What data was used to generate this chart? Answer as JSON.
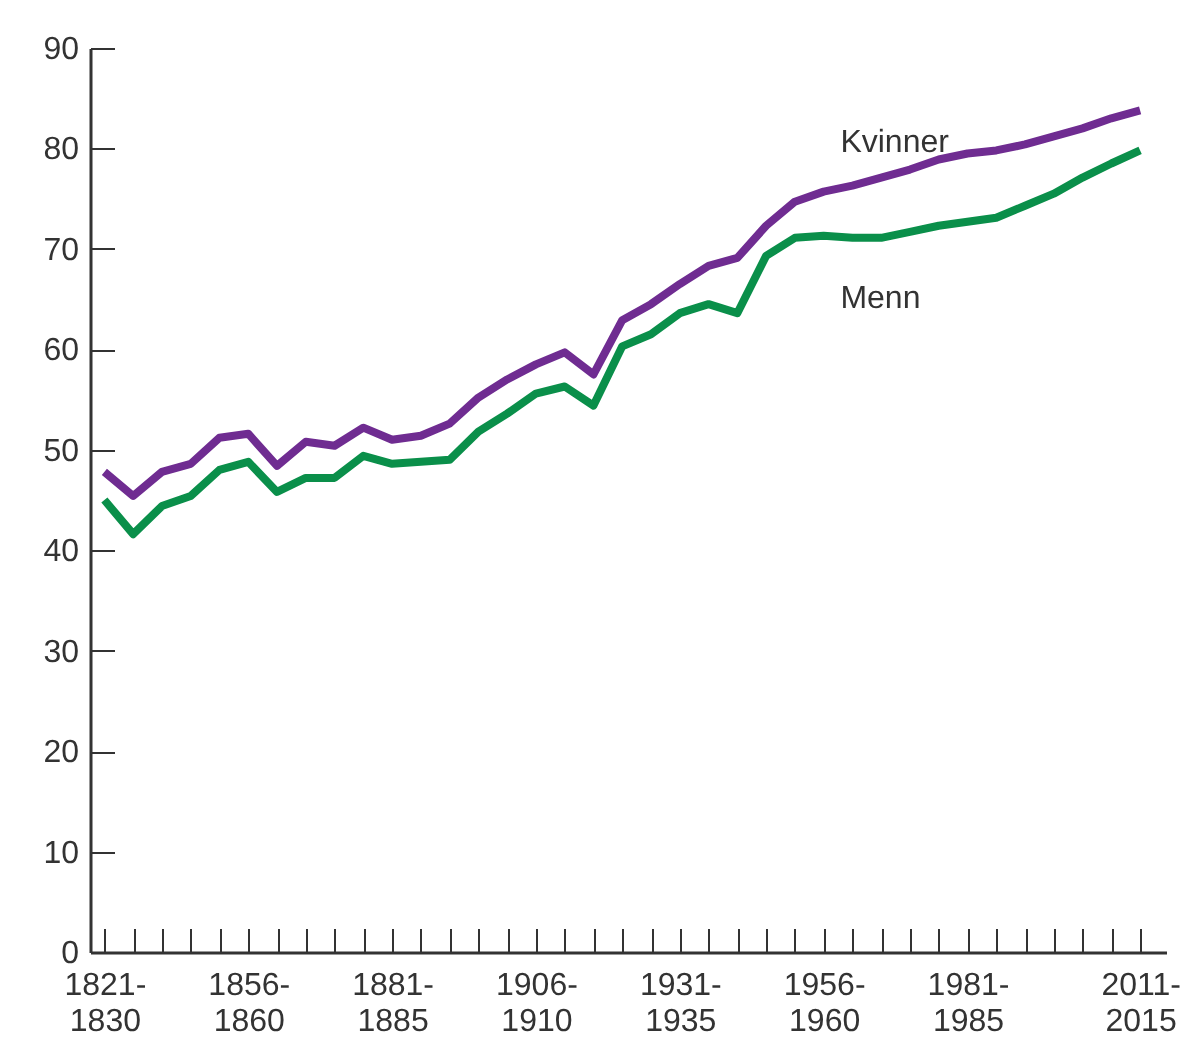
{
  "chart_data": {
    "type": "line",
    "categories": [
      "1821-\n1830",
      null,
      null,
      null,
      null,
      "1856-\n1860",
      null,
      null,
      null,
      null,
      "1881-\n1885",
      null,
      null,
      null,
      null,
      "1906-\n1910",
      null,
      null,
      null,
      null,
      "1931-\n1935",
      null,
      null,
      null,
      null,
      "1956-\n1960",
      null,
      null,
      null,
      null,
      "1981-\n1985",
      null,
      null,
      null,
      null,
      null,
      "2011-\n2015"
    ],
    "series": [
      {
        "name": "Kvinner",
        "color": "#6f2c91",
        "values": [
          47.8,
          45.4,
          47.8,
          48.6,
          51.2,
          51.6,
          48.4,
          50.8,
          50.4,
          52.2,
          51.0,
          51.4,
          52.6,
          55.2,
          57.0,
          58.5,
          59.7,
          57.5,
          62.9,
          64.5,
          66.5,
          68.3,
          69.1,
          72.3,
          74.7,
          75.7,
          76.3,
          77.1,
          77.9,
          78.9,
          79.5,
          79.8,
          80.4,
          81.2,
          82.0,
          83.0,
          83.8
        ]
      },
      {
        "name": "Menn",
        "color": "#0a8f4a",
        "values": [
          45.0,
          41.6,
          44.4,
          45.4,
          48.0,
          48.8,
          45.8,
          47.2,
          47.2,
          49.4,
          48.6,
          48.8,
          49.0,
          51.8,
          53.6,
          55.6,
          56.3,
          54.4,
          60.3,
          61.5,
          63.6,
          64.5,
          63.6,
          69.3,
          71.1,
          71.3,
          71.1,
          71.1,
          71.7,
          72.3,
          72.7,
          73.1,
          74.3,
          75.5,
          77.1,
          78.5,
          79.8
        ]
      }
    ],
    "ylim": [
      0,
      90
    ],
    "yticks": [
      0,
      10,
      20,
      30,
      40,
      50,
      60,
      70,
      80,
      90
    ],
    "grid": false,
    "legend": false,
    "marker": "none",
    "line_style": "solid"
  }
}
